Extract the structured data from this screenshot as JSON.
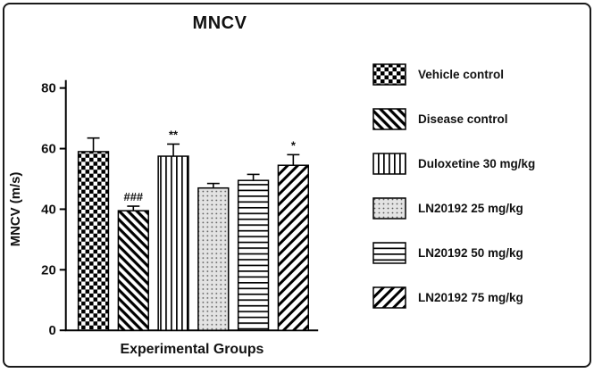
{
  "chart_data": {
    "type": "bar",
    "title": "MNCV",
    "xlabel": "Experimental Groups",
    "ylabel": "MNCV (m/s)",
    "ylim": [
      0,
      80
    ],
    "yticks": [
      0,
      20,
      40,
      60,
      80
    ],
    "categories": [
      "Vehicle control",
      "Disease control",
      "Duloxetine 30 mg/kg",
      "LN20192 25 mg/kg",
      "LN20192 50 mg/kg",
      "LN20192 75 mg/kg"
    ],
    "values": [
      59,
      39.5,
      57.5,
      47,
      49.5,
      54.5
    ],
    "errors": [
      4.5,
      1.5,
      4,
      1.5,
      2,
      3.5
    ],
    "annotations": [
      "",
      "###",
      "**",
      "",
      "",
      "*"
    ],
    "patterns": [
      "checker",
      "diagonal-dense",
      "vertical",
      "dots",
      "horizontal",
      "diagonal"
    ],
    "grid": false,
    "legend_position": "right",
    "colors": {
      "bar_outline": "#000000",
      "axis": "#000000",
      "text": "#111111",
      "dots_swatch_bg": "#e3e3e3",
      "panel_border": "#1a1a1a",
      "background": "#ffffff"
    }
  }
}
